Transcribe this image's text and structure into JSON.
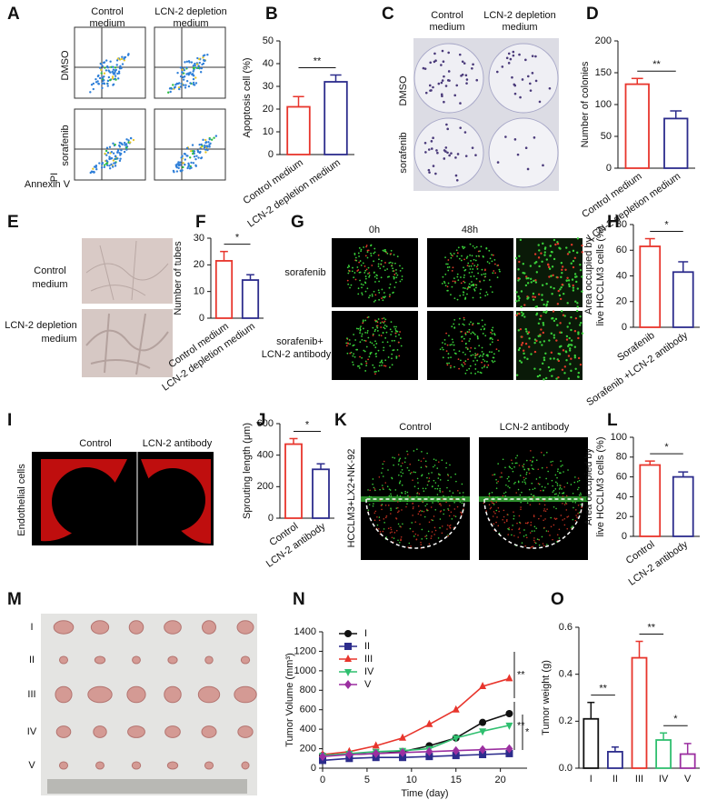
{
  "panel_letters": [
    "A",
    "B",
    "C",
    "D",
    "E",
    "F",
    "G",
    "H",
    "I",
    "J",
    "K",
    "L",
    "M",
    "N",
    "O"
  ],
  "panels": {
    "A": {
      "columns": [
        [
          "Control",
          "medium"
        ],
        [
          "LCN-2 depletion",
          "medium"
        ]
      ],
      "rows": [
        "DMSO",
        "sorafenib"
      ],
      "y_axis": "PI",
      "x_axis": "Annexin V"
    },
    "C": {
      "columns": [
        [
          "Control",
          "medium"
        ],
        [
          "LCN-2 depletion",
          "medium"
        ]
      ],
      "rows": [
        "DMSO",
        "sorafenib"
      ]
    },
    "E": {
      "rows": [
        [
          "Control",
          "medium"
        ],
        [
          "LCN-2 depletion",
          "medium"
        ]
      ]
    },
    "G": {
      "columns": [
        "0h",
        "48h"
      ],
      "rows": [
        [
          "sorafenib"
        ],
        [
          "sorafenib+",
          "LCN-2 antibody"
        ]
      ]
    },
    "I": {
      "columns": [
        "Control",
        "LCN-2 antibody"
      ],
      "y_axis": "Endothelial cells"
    },
    "K": {
      "columns": [
        "Control",
        "LCN-2 antibody"
      ],
      "y_axis": "HCCLM3+LX2+NK-92"
    },
    "M": {
      "rows": [
        "I",
        "II",
        "III",
        "IV",
        "V"
      ]
    }
  },
  "chart_data": [
    {
      "type": "bar",
      "ylabel": [
        "Apoptosis cell (%)"
      ],
      "categories": [
        "Control medium",
        "LCN-2 depletion medium"
      ],
      "values": [
        21,
        32
      ],
      "errors": [
        4.5,
        3
      ],
      "colors": [
        "#e8352c",
        "#2c2c8c"
      ],
      "ylim": [
        0,
        50
      ],
      "yticks": [
        0,
        10,
        20,
        30,
        40,
        50
      ],
      "annotations": [
        "**"
      ]
    },
    {
      "type": "bar",
      "ylabel": [
        "Number of colonies"
      ],
      "categories": [
        "Control medium",
        "LCN-2 depletion medium"
      ],
      "values": [
        132,
        78
      ],
      "errors": [
        9,
        12
      ],
      "colors": [
        "#e8352c",
        "#2c2c8c"
      ],
      "ylim": [
        0,
        200
      ],
      "yticks": [
        0,
        50,
        100,
        150,
        200
      ],
      "annotations": [
        "**"
      ]
    },
    {
      "type": "bar",
      "ylabel": [
        "Number of tubes"
      ],
      "categories": [
        "Control medium",
        "LCN-2 depletion medium"
      ],
      "values": [
        21.5,
        14.3
      ],
      "errors": [
        3.5,
        2
      ],
      "colors": [
        "#e8352c",
        "#2c2c8c"
      ],
      "ylim": [
        0,
        30
      ],
      "yticks": [
        0,
        10,
        20,
        30
      ],
      "annotations": [
        "*"
      ]
    },
    {
      "type": "bar",
      "ylabel": [
        "Area occupied by",
        "live HCCLM3 cells (%)"
      ],
      "categories": [
        "Sorafenib",
        "Sorafenib +LCN-2 antibody"
      ],
      "values": [
        63,
        43
      ],
      "errors": [
        6,
        8
      ],
      "colors": [
        "#e8352c",
        "#2c2c8c"
      ],
      "ylim": [
        0,
        80
      ],
      "yticks": [
        0,
        20,
        40,
        60,
        80
      ],
      "annotations": [
        "*"
      ]
    },
    {
      "type": "bar",
      "ylabel": [
        "Sprouting length (μm)"
      ],
      "categories": [
        "Control",
        "LCN-2 antibody"
      ],
      "values": [
        470,
        310
      ],
      "errors": [
        35,
        35
      ],
      "colors": [
        "#e8352c",
        "#2c2c8c"
      ],
      "ylim": [
        0,
        600
      ],
      "yticks": [
        0,
        200,
        400,
        600
      ],
      "annotations": [
        "*"
      ]
    },
    {
      "type": "bar",
      "ylabel": [
        "Area occupied by",
        "live HCCLM3 cells (%)"
      ],
      "categories": [
        "Control",
        "LCN-2 antibody"
      ],
      "values": [
        72,
        60
      ],
      "errors": [
        4,
        5
      ],
      "colors": [
        "#e8352c",
        "#2c2c8c"
      ],
      "ylim": [
        0,
        100
      ],
      "yticks": [
        0,
        20,
        40,
        60,
        80,
        100
      ],
      "annotations": [
        "*"
      ]
    },
    {
      "type": "line",
      "xlabel": "Time (day)",
      "ylabel": [
        "Tumor Volume (mm³)"
      ],
      "x": [
        0,
        3,
        6,
        9,
        12,
        15,
        18,
        21
      ],
      "series": [
        {
          "name": "I",
          "color": "#111111",
          "values": [
            130,
            140,
            150,
            170,
            230,
            310,
            470,
            560
          ]
        },
        {
          "name": "II",
          "color": "#2c2c8c",
          "values": [
            80,
            100,
            110,
            110,
            120,
            130,
            140,
            150
          ]
        },
        {
          "name": "III",
          "color": "#e8352c",
          "values": [
            140,
            170,
            230,
            310,
            450,
            600,
            840,
            920
          ]
        },
        {
          "name": "IV",
          "color": "#2fbf6f",
          "values": [
            130,
            150,
            170,
            180,
            200,
            310,
            380,
            440
          ]
        },
        {
          "name": "V",
          "color": "#9b2fa0",
          "values": [
            120,
            140,
            150,
            160,
            170,
            180,
            190,
            200
          ]
        }
      ],
      "xlim": [
        0,
        23
      ],
      "xticks": [
        0,
        5,
        10,
        15,
        20
      ],
      "ylim": [
        0,
        1400
      ],
      "yticks": [
        0,
        200,
        400,
        600,
        800,
        1000,
        1200,
        1400
      ],
      "annotations": [
        "**",
        "**",
        "*"
      ]
    },
    {
      "type": "bar",
      "ylabel": [
        "Tumor weight (g)"
      ],
      "categories": [
        "I",
        "II",
        "III",
        "IV",
        "V"
      ],
      "values": [
        0.21,
        0.07,
        0.47,
        0.12,
        0.06
      ],
      "errors": [
        0.07,
        0.02,
        0.07,
        0.03,
        0.045
      ],
      "colors": [
        "#111111",
        "#2c2c8c",
        "#e8352c",
        "#2fbf6f",
        "#9b2fa0"
      ],
      "ylim": [
        0,
        0.6
      ],
      "yticks": [
        {
          "value": 0,
          "label": "0.0"
        },
        0.2,
        0.4,
        0.6
      ],
      "annotations": [
        "**",
        "**",
        "*"
      ]
    }
  ]
}
